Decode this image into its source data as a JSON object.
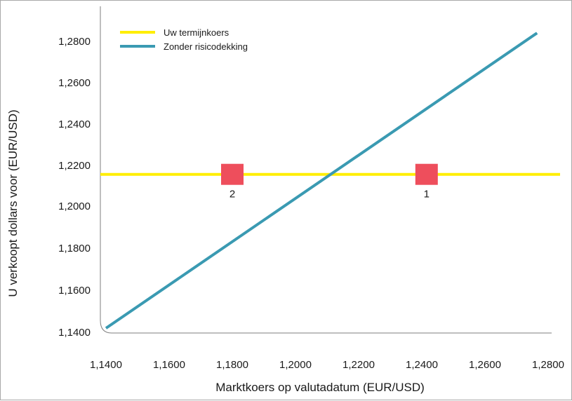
{
  "chart_data": {
    "type": "line",
    "title": "",
    "xlabel": "Marktkoers op valutadatum (EUR/USD)",
    "ylabel": "U verkoopt dollars voor (EUR/USD)",
    "xlim": [
      1.14,
      1.28
    ],
    "ylim": [
      1.14,
      1.28
    ],
    "x_ticks": [
      "1,1400",
      "1,1600",
      "1,1800",
      "1,2000",
      "1,2200",
      "1,2400",
      "1,2600",
      "1,2800"
    ],
    "y_ticks": [
      "1,1400",
      "1,1600",
      "1,1800",
      "1,2000",
      "1,2200",
      "1,2400",
      "1,2600",
      "1,2800"
    ],
    "x_tick_values": [
      1.14,
      1.16,
      1.18,
      1.2,
      1.22,
      1.24,
      1.26,
      1.28
    ],
    "y_tick_values": [
      1.14,
      1.16,
      1.18,
      1.2,
      1.22,
      1.24,
      1.26,
      1.28
    ],
    "grid": false,
    "legend": "top-left",
    "series": [
      {
        "name": "Uw termijnkoers",
        "color": "#ffee00",
        "points": [
          [
            1.14,
            1.216
          ],
          [
            1.28,
            1.216
          ]
        ]
      },
      {
        "name": "Zonder risicodekking",
        "color": "#3a9ab2",
        "points": [
          [
            1.14,
            1.142
          ],
          [
            1.2765,
            1.284
          ]
        ]
      }
    ],
    "markers": [
      {
        "label": "2",
        "x": 1.18,
        "y": 1.216,
        "color": "#ee4e5c"
      },
      {
        "label": "1",
        "x": 1.2415,
        "y": 1.216,
        "color": "#ee4e5c"
      }
    ]
  }
}
